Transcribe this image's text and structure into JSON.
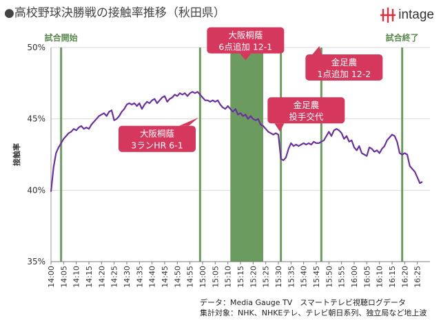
{
  "header": {
    "title": "●高校野球決勝戦の接触率推移（秋田県）",
    "logo_text": "intage",
    "logo_color": "#e22d3c"
  },
  "footer": {
    "line1": "データ：Media Gauge TV　スマートテレビ視聴ログデータ",
    "line2": "集計対象：NHK、NHKEテレ、テレビ朝日系列、独立局など地上波"
  },
  "colors": {
    "line": "#6a2fa3",
    "event_line": "#6b9b5e",
    "event_band": "#6b9b5e",
    "event_label": "#5a8a4e",
    "callout": "#d6385d",
    "grid": "#d9d9d9"
  },
  "chart_data": {
    "type": "line",
    "title": "●高校野球決勝戦の接触率推移（秋田県）",
    "ylabel": "接触率",
    "xlabel": "",
    "xlim": [
      "14:00",
      "16:30"
    ],
    "ylim": [
      35,
      50
    ],
    "yticks": [
      "35%",
      "40%",
      "45%",
      "50%"
    ],
    "ytick_values": [
      35,
      40,
      45,
      50
    ],
    "xticks": [
      "14:00",
      "14:05",
      "14:10",
      "14:15",
      "14:20",
      "14:25",
      "14:30",
      "14:35",
      "14:40",
      "14:45",
      "14:50",
      "14:55",
      "15:00",
      "15:05",
      "15:10",
      "15:15",
      "15:20",
      "15:25",
      "15:30",
      "15:35",
      "15:40",
      "15:45",
      "15:50",
      "15:55",
      "16:00",
      "16:05",
      "16:10",
      "16:15",
      "16:20",
      "16:25"
    ],
    "grid": "horizontal",
    "series": [
      {
        "points": [
          [
            "14:00",
            39.9
          ],
          [
            "14:01",
            41.6
          ],
          [
            "14:02",
            42.6
          ],
          [
            "14:03",
            43.0
          ],
          [
            "14:04",
            43.3
          ],
          [
            "14:05",
            43.6
          ],
          [
            "14:06",
            43.8
          ],
          [
            "14:07",
            44.0
          ],
          [
            "14:08",
            44.1
          ],
          [
            "14:09",
            44.3
          ],
          [
            "14:10",
            44.2
          ],
          [
            "14:11",
            44.4
          ],
          [
            "14:12",
            44.5
          ],
          [
            "14:13",
            44.3
          ],
          [
            "14:14",
            44.4
          ],
          [
            "14:15",
            44.3
          ],
          [
            "14:16",
            44.6
          ],
          [
            "14:17",
            44.8
          ],
          [
            "14:18",
            45.0
          ],
          [
            "14:19",
            45.2
          ],
          [
            "14:20",
            45.3
          ],
          [
            "14:21",
            45.4
          ],
          [
            "14:22",
            45.2
          ],
          [
            "14:23",
            45.5
          ],
          [
            "14:24",
            45.6
          ],
          [
            "14:25",
            44.9
          ],
          [
            "14:26",
            45.0
          ],
          [
            "14:27",
            45.2
          ],
          [
            "14:28",
            45.5
          ],
          [
            "14:29",
            45.7
          ],
          [
            "14:30",
            46.0
          ],
          [
            "14:31",
            46.1
          ],
          [
            "14:32",
            46.0
          ],
          [
            "14:33",
            46.1
          ],
          [
            "14:34",
            45.9
          ],
          [
            "14:35",
            46.1
          ],
          [
            "14:36",
            45.7
          ],
          [
            "14:37",
            46.0
          ],
          [
            "14:38",
            46.2
          ],
          [
            "14:39",
            46.1
          ],
          [
            "14:40",
            46.3
          ],
          [
            "14:41",
            46.4
          ],
          [
            "14:42",
            46.1
          ],
          [
            "14:43",
            46.3
          ],
          [
            "14:44",
            46.5
          ],
          [
            "14:45",
            46.6
          ],
          [
            "14:46",
            46.2
          ],
          [
            "14:47",
            46.4
          ],
          [
            "14:48",
            46.5
          ],
          [
            "14:49",
            46.7
          ],
          [
            "14:50",
            46.6
          ],
          [
            "14:51",
            46.8
          ],
          [
            "14:52",
            46.7
          ],
          [
            "14:53",
            46.8
          ],
          [
            "14:54",
            46.6
          ],
          [
            "14:55",
            46.8
          ],
          [
            "14:56",
            46.9
          ],
          [
            "14:57",
            46.8
          ],
          [
            "14:58",
            46.9
          ],
          [
            "14:59",
            46.7
          ],
          [
            "15:00",
            46.5
          ],
          [
            "15:01",
            46.3
          ],
          [
            "15:02",
            46.3
          ],
          [
            "15:03",
            46.2
          ],
          [
            "15:04",
            46.3
          ],
          [
            "15:05",
            46.2
          ],
          [
            "15:06",
            46.3
          ],
          [
            "15:07",
            46.0
          ],
          [
            "15:08",
            45.8
          ],
          [
            "15:09",
            45.7
          ],
          [
            "15:10",
            45.9
          ],
          [
            "15:11",
            45.7
          ],
          [
            "15:12",
            45.5
          ],
          [
            "15:13",
            45.7
          ],
          [
            "15:14",
            45.3
          ],
          [
            "15:15",
            45.4
          ],
          [
            "15:16",
            45.2
          ],
          [
            "15:17",
            45.3
          ],
          [
            "15:18",
            45.0
          ],
          [
            "15:19",
            45.2
          ],
          [
            "15:20",
            45.0
          ],
          [
            "15:21",
            44.9
          ],
          [
            "15:22",
            45.0
          ],
          [
            "15:23",
            44.6
          ],
          [
            "15:24",
            44.5
          ],
          [
            "15:25",
            44.3
          ],
          [
            "15:26",
            44.1
          ],
          [
            "15:27",
            44.0
          ],
          [
            "15:28",
            43.9
          ],
          [
            "15:29",
            44.0
          ],
          [
            "15:30",
            43.9
          ],
          [
            "15:31",
            42.2
          ],
          [
            "15:32",
            42.1
          ],
          [
            "15:33",
            42.3
          ],
          [
            "15:34",
            42.9
          ],
          [
            "15:35",
            43.3
          ],
          [
            "15:36",
            43.1
          ],
          [
            "15:37",
            43.2
          ],
          [
            "15:38",
            43.1
          ],
          [
            "15:39",
            43.2
          ],
          [
            "15:40",
            43.3
          ],
          [
            "15:41",
            43.2
          ],
          [
            "15:42",
            43.3
          ],
          [
            "15:43",
            43.2
          ],
          [
            "15:44",
            43.4
          ],
          [
            "15:45",
            43.3
          ],
          [
            "15:46",
            43.3
          ],
          [
            "15:47",
            43.4
          ],
          [
            "15:48",
            43.5
          ],
          [
            "15:49",
            43.8
          ],
          [
            "15:50",
            44.1
          ],
          [
            "15:51",
            43.8
          ],
          [
            "15:52",
            44.2
          ],
          [
            "15:53",
            44.3
          ],
          [
            "15:54",
            44.2
          ],
          [
            "15:55",
            44.0
          ],
          [
            "15:56",
            43.6
          ],
          [
            "15:57",
            43.8
          ],
          [
            "15:58",
            43.4
          ],
          [
            "15:59",
            43.5
          ],
          [
            "16:00",
            43.0
          ],
          [
            "16:01",
            42.8
          ],
          [
            "16:02",
            43.1
          ],
          [
            "16:03",
            42.6
          ],
          [
            "16:04",
            42.5
          ],
          [
            "16:05",
            42.4
          ],
          [
            "16:06",
            43.0
          ],
          [
            "16:07",
            42.9
          ],
          [
            "16:08",
            42.7
          ],
          [
            "16:09",
            42.8
          ],
          [
            "16:10",
            42.6
          ],
          [
            "16:11",
            42.9
          ],
          [
            "16:12",
            43.1
          ],
          [
            "16:13",
            43.5
          ],
          [
            "16:14",
            43.7
          ],
          [
            "16:15",
            43.9
          ],
          [
            "16:16",
            43.8
          ],
          [
            "16:17",
            43.4
          ],
          [
            "16:18",
            42.6
          ],
          [
            "16:19",
            42.5
          ],
          [
            "16:20",
            42.6
          ],
          [
            "16:21",
            42.5
          ],
          [
            "16:22",
            41.7
          ],
          [
            "16:23",
            41.5
          ],
          [
            "16:24",
            41.3
          ],
          [
            "16:25",
            40.9
          ],
          [
            "16:26",
            40.5
          ],
          [
            "16:27",
            40.6
          ]
        ]
      }
    ],
    "event_lines": [
      "14:04",
      "14:59",
      "15:31",
      "15:47",
      "16:19"
    ],
    "event_band": [
      "15:11",
      "15:24"
    ],
    "event_labels": [
      {
        "text": "試合開始",
        "time": "14:04"
      },
      {
        "text": "試合終了",
        "time": "16:19"
      }
    ],
    "callouts": [
      {
        "lines": [
          "大阪桐蔭",
          "6点追加 12-1"
        ],
        "time": "15:17",
        "value": 50.5,
        "pointer": "down"
      },
      {
        "lines": [
          "金足農",
          "1点追加 12-2"
        ],
        "time": "15:56",
        "value": 48.6,
        "pointer": "up-left"
      },
      {
        "lines": [
          "金足農",
          "投手交代"
        ],
        "time": "15:41",
        "value": 45.6,
        "pointer": "down-left"
      },
      {
        "lines": [
          "大阪桐蔭",
          "3ランHR 6-1"
        ],
        "time": "14:42",
        "value": 43.6,
        "pointer": "up-right"
      }
    ]
  }
}
